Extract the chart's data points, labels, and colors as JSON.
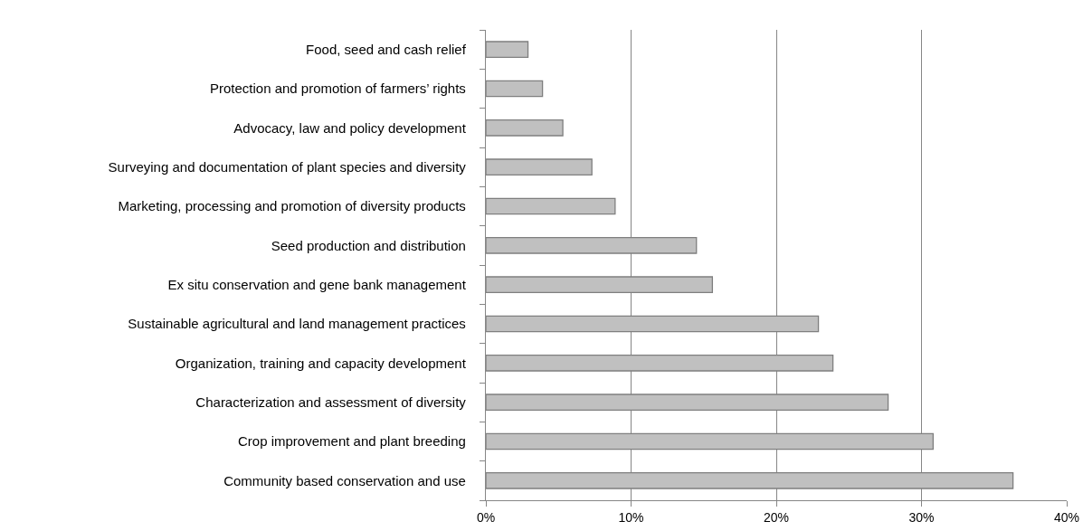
{
  "chart_data": {
    "type": "bar",
    "orientation": "horizontal",
    "categories": [
      "Food, seed and cash relief",
      "Protection and promotion of farmers’ rights",
      "Advocacy, law and policy development",
      "Surveying and documentation of plant species and diversity",
      "Marketing, processing and promotion of diversity products",
      "Seed production and distribution",
      "Ex situ conservation and gene bank management",
      "Sustainable agricultural and land management practices",
      "Organization, training and capacity development",
      "Characterization and assessment of diversity",
      "Crop improvement and plant breeding",
      "Community based conservation and use"
    ],
    "values": [
      2.9,
      3.9,
      5.3,
      7.3,
      8.9,
      14.5,
      15.6,
      22.9,
      23.9,
      27.7,
      30.8,
      36.3
    ],
    "color": "#c0c0c0",
    "xlim": [
      0,
      40
    ],
    "xticks": [
      {
        "value": 0,
        "label": "0%"
      },
      {
        "value": 10,
        "label": "10%"
      },
      {
        "value": 20,
        "label": "20%"
      },
      {
        "value": 30,
        "label": "30%"
      },
      {
        "value": 40,
        "label": "40%"
      }
    ],
    "grid": "x",
    "legend": false
  }
}
